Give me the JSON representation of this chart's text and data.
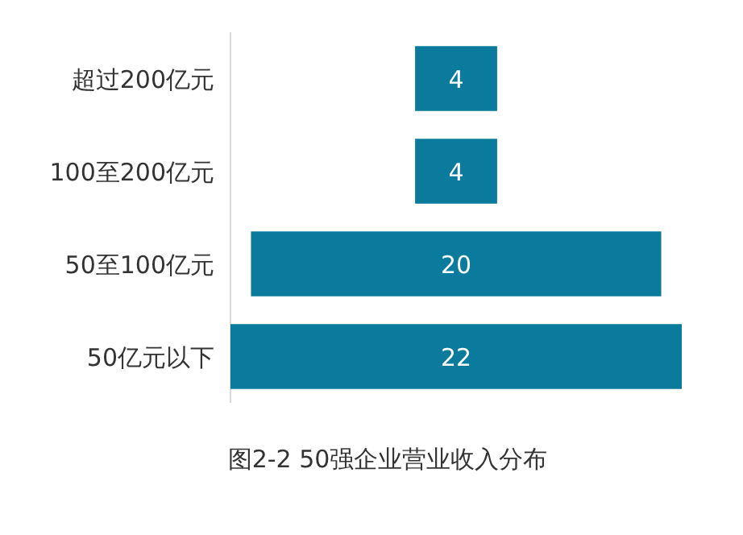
{
  "chart_data": {
    "type": "other",
    "title": "图2-2 50强企业营业收入分布",
    "categories": [
      "超过200亿元",
      "100至200亿元",
      "50至100亿元",
      "50亿元以下"
    ],
    "values": [
      4,
      4,
      20,
      22
    ],
    "color": "#0a7b9c",
    "data_labels": true
  }
}
